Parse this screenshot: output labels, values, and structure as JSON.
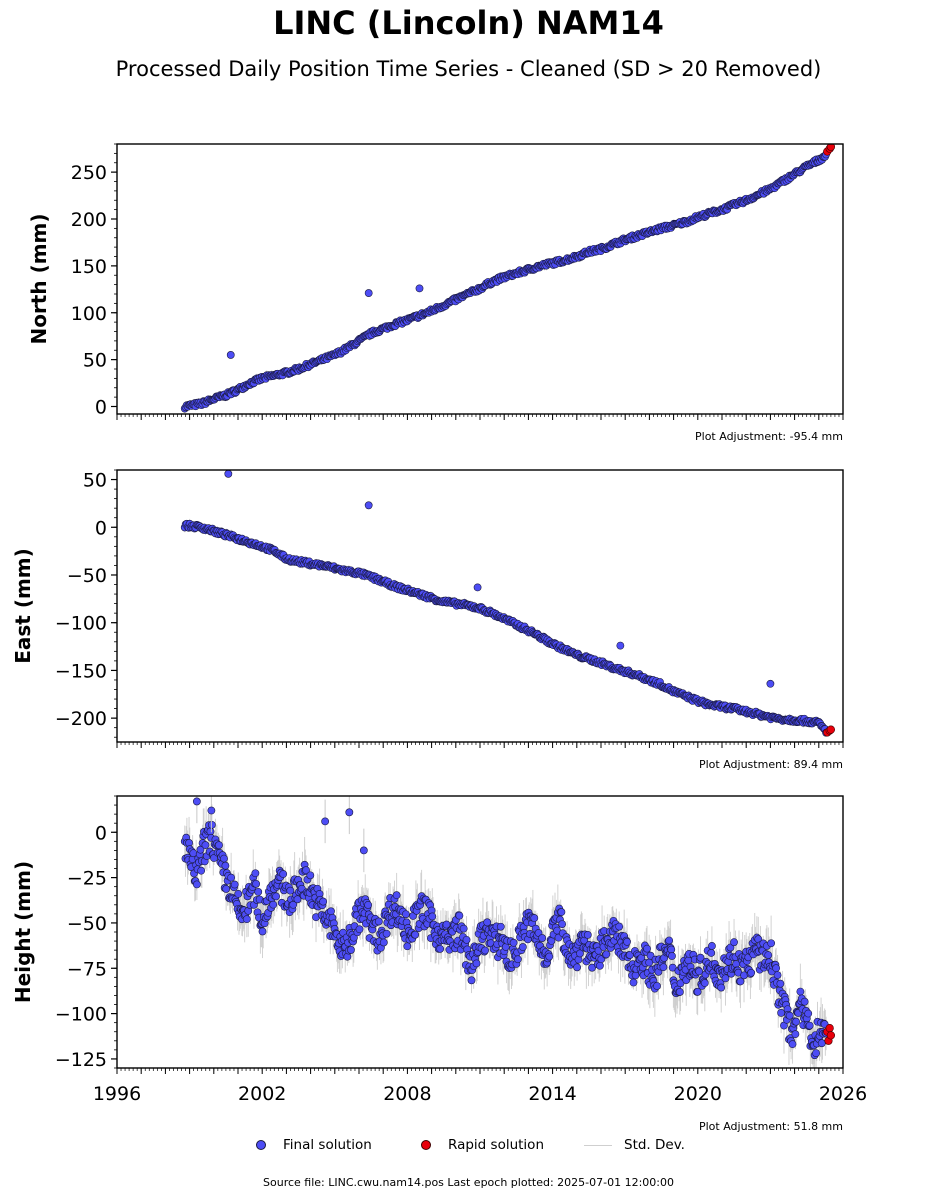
{
  "title": "LINC (Lincoln) NAM14",
  "subtitle": "Processed Daily Position Time Series - Cleaned (SD > 20 Removed)",
  "source": "Source file: LINC.cwu.nam14.pos  Last epoch plotted: 2025-07-01 12:00:00",
  "legend": {
    "final": "Final solution",
    "rapid": "Rapid solution",
    "std": "Std. Dev."
  },
  "colors": {
    "final": "#4d4df5",
    "rapid": "#e8000b",
    "std": "#c8c8c8",
    "edge": "#1a1a40"
  },
  "chart_data": [
    {
      "type": "scatter",
      "panel": "north",
      "ylabel": "North (mm)",
      "ylim": [
        -8,
        280
      ],
      "yticks": [
        0,
        50,
        100,
        150,
        200,
        250
      ],
      "xlim": [
        1996,
        2026
      ],
      "adjustment": "Plot Adjustment: -95.4 mm",
      "series": [
        {
          "name": "Final solution",
          "x": [
            1998.8,
            1999.5,
            2000.0,
            2000.5,
            2001.0,
            2001.5,
            2002.0,
            2002.5,
            2003.0,
            2003.5,
            2004.0,
            2004.5,
            2005.0,
            2005.5,
            2006.0,
            2006.5,
            2007.0,
            2007.5,
            2008.0,
            2008.5,
            2009.0,
            2009.5,
            2010.0,
            2010.5,
            2011.0,
            2011.5,
            2012.0,
            2012.5,
            2013.0,
            2013.5,
            2014.0,
            2014.5,
            2015.0,
            2015.5,
            2016.0,
            2016.5,
            2017.0,
            2017.5,
            2018.0,
            2018.5,
            2019.0,
            2019.5,
            2020.0,
            2020.5,
            2021.0,
            2021.5,
            2022.0,
            2022.5,
            2023.0,
            2023.5,
            2024.0,
            2024.5,
            2025.0,
            2025.3
          ],
          "y": [
            0,
            3,
            8,
            12,
            18,
            25,
            30,
            33,
            36,
            40,
            45,
            50,
            55,
            62,
            70,
            78,
            83,
            88,
            92,
            97,
            102,
            108,
            114,
            120,
            126,
            133,
            138,
            142,
            146,
            150,
            153,
            156,
            160,
            165,
            168,
            173,
            178,
            182,
            186,
            190,
            193,
            197,
            202,
            206,
            210,
            215,
            220,
            226,
            232,
            240,
            248,
            256,
            263,
            268
          ]
        },
        {
          "name": "Rapid solution",
          "x": [
            2025.35,
            2025.45,
            2025.5
          ],
          "y": [
            272,
            275,
            277
          ]
        }
      ],
      "outliers": [
        [
          2000.7,
          55
        ],
        [
          2006.4,
          121
        ],
        [
          2008.5,
          126
        ]
      ]
    },
    {
      "type": "scatter",
      "panel": "east",
      "ylabel": "East (mm)",
      "ylim": [
        -225,
        60
      ],
      "yticks": [
        50,
        0,
        -50,
        -100,
        -150,
        -200
      ],
      "xlim": [
        1996,
        2026
      ],
      "adjustment": "Plot Adjustment: 89.4 mm",
      "series": [
        {
          "name": "Final solution",
          "x": [
            1998.8,
            1999.5,
            2000.0,
            2000.5,
            2001.0,
            2001.5,
            2002.0,
            2002.5,
            2003.0,
            2003.5,
            2004.0,
            2004.5,
            2005.0,
            2005.5,
            2006.0,
            2006.5,
            2007.0,
            2007.5,
            2008.0,
            2008.5,
            2009.0,
            2009.5,
            2010.0,
            2010.5,
            2011.0,
            2011.5,
            2012.0,
            2012.5,
            2013.0,
            2013.5,
            2014.0,
            2014.5,
            2015.0,
            2015.5,
            2016.0,
            2016.5,
            2017.0,
            2017.5,
            2018.0,
            2018.5,
            2019.0,
            2019.5,
            2020.0,
            2020.5,
            2021.0,
            2021.5,
            2022.0,
            2022.5,
            2023.0,
            2023.5,
            2024.0,
            2024.5,
            2025.0,
            2025.3
          ],
          "y": [
            2,
            0,
            -4,
            -8,
            -12,
            -16,
            -20,
            -25,
            -33,
            -36,
            -38,
            -40,
            -43,
            -46,
            -48,
            -52,
            -57,
            -62,
            -66,
            -70,
            -74,
            -78,
            -80,
            -82,
            -85,
            -90,
            -96,
            -102,
            -108,
            -115,
            -122,
            -128,
            -134,
            -138,
            -142,
            -147,
            -151,
            -155,
            -160,
            -165,
            -172,
            -177,
            -182,
            -186,
            -188,
            -190,
            -193,
            -196,
            -199,
            -201,
            -202,
            -203,
            -205,
            -214
          ]
        },
        {
          "name": "Rapid solution",
          "x": [
            2025.35,
            2025.45,
            2025.5
          ],
          "y": [
            -215,
            -213,
            -212
          ]
        }
      ],
      "outliers": [
        [
          2000.6,
          56
        ],
        [
          2006.4,
          23
        ],
        [
          2010.9,
          -63
        ],
        [
          2016.8,
          -124
        ],
        [
          2023.0,
          -164
        ]
      ]
    },
    {
      "type": "scatter",
      "panel": "height",
      "ylabel": "Height (mm)",
      "ylim": [
        -130,
        20
      ],
      "yticks": [
        0,
        -25,
        -50,
        -75,
        -100,
        -125
      ],
      "xlim": [
        1996,
        2026
      ],
      "xticks": [
        "1996",
        "2002",
        "2008",
        "2014",
        "2020",
        "2026"
      ],
      "adjustment": "Plot Adjustment: 51.8 mm",
      "series": [
        {
          "name": "Final solution",
          "x": [
            1998.8,
            1999.0,
            1999.3,
            1999.6,
            1999.9,
            2000.2,
            2000.5,
            2000.8,
            2001.1,
            2001.4,
            2001.7,
            2002.0,
            2002.3,
            2002.6,
            2002.9,
            2003.2,
            2003.5,
            2003.8,
            2004.1,
            2004.4,
            2004.7,
            2005.0,
            2005.3,
            2005.6,
            2005.9,
            2006.2,
            2006.5,
            2006.8,
            2007.1,
            2007.4,
            2007.7,
            2008.0,
            2008.3,
            2008.6,
            2008.9,
            2009.2,
            2009.5,
            2009.8,
            2010.1,
            2010.4,
            2010.7,
            2011.0,
            2011.3,
            2011.6,
            2011.9,
            2012.2,
            2012.5,
            2012.8,
            2013.1,
            2013.4,
            2013.7,
            2014.0,
            2014.3,
            2014.6,
            2014.9,
            2015.2,
            2015.5,
            2015.8,
            2016.1,
            2016.4,
            2016.7,
            2017.0,
            2017.3,
            2017.6,
            2017.9,
            2018.2,
            2018.5,
            2018.8,
            2019.1,
            2019.4,
            2019.7,
            2020.0,
            2020.3,
            2020.6,
            2020.9,
            2021.2,
            2021.5,
            2021.8,
            2022.1,
            2022.4,
            2022.7,
            2023.0,
            2023.3,
            2023.6,
            2023.9,
            2024.2,
            2024.5,
            2024.8,
            2025.1,
            2025.3
          ],
          "y": [
            -5,
            -15,
            -25,
            -8,
            -2,
            -15,
            -25,
            -35,
            -45,
            -40,
            -30,
            -50,
            -35,
            -28,
            -32,
            -38,
            -30,
            -25,
            -35,
            -42,
            -48,
            -55,
            -65,
            -60,
            -48,
            -42,
            -52,
            -58,
            -50,
            -40,
            -45,
            -55,
            -50,
            -42,
            -48,
            -55,
            -58,
            -60,
            -52,
            -65,
            -75,
            -60,
            -55,
            -62,
            -58,
            -70,
            -65,
            -55,
            -50,
            -60,
            -68,
            -55,
            -50,
            -62,
            -70,
            -58,
            -65,
            -72,
            -62,
            -55,
            -60,
            -65,
            -75,
            -68,
            -72,
            -80,
            -70,
            -65,
            -85,
            -75,
            -72,
            -80,
            -75,
            -70,
            -78,
            -72,
            -68,
            -75,
            -72,
            -65,
            -70,
            -68,
            -85,
            -100,
            -110,
            -95,
            -105,
            -115,
            -110,
            -112
          ]
        },
        {
          "name": "Rapid solution",
          "x": [
            2025.35,
            2025.4,
            2025.45,
            2025.5
          ],
          "y": [
            -110,
            -115,
            -108,
            -112
          ]
        }
      ],
      "outliers": [
        [
          1999.3,
          17
        ],
        [
          1999.9,
          12
        ],
        [
          2004.6,
          6
        ],
        [
          2005.6,
          11
        ],
        [
          2006.2,
          -10
        ]
      ]
    }
  ]
}
